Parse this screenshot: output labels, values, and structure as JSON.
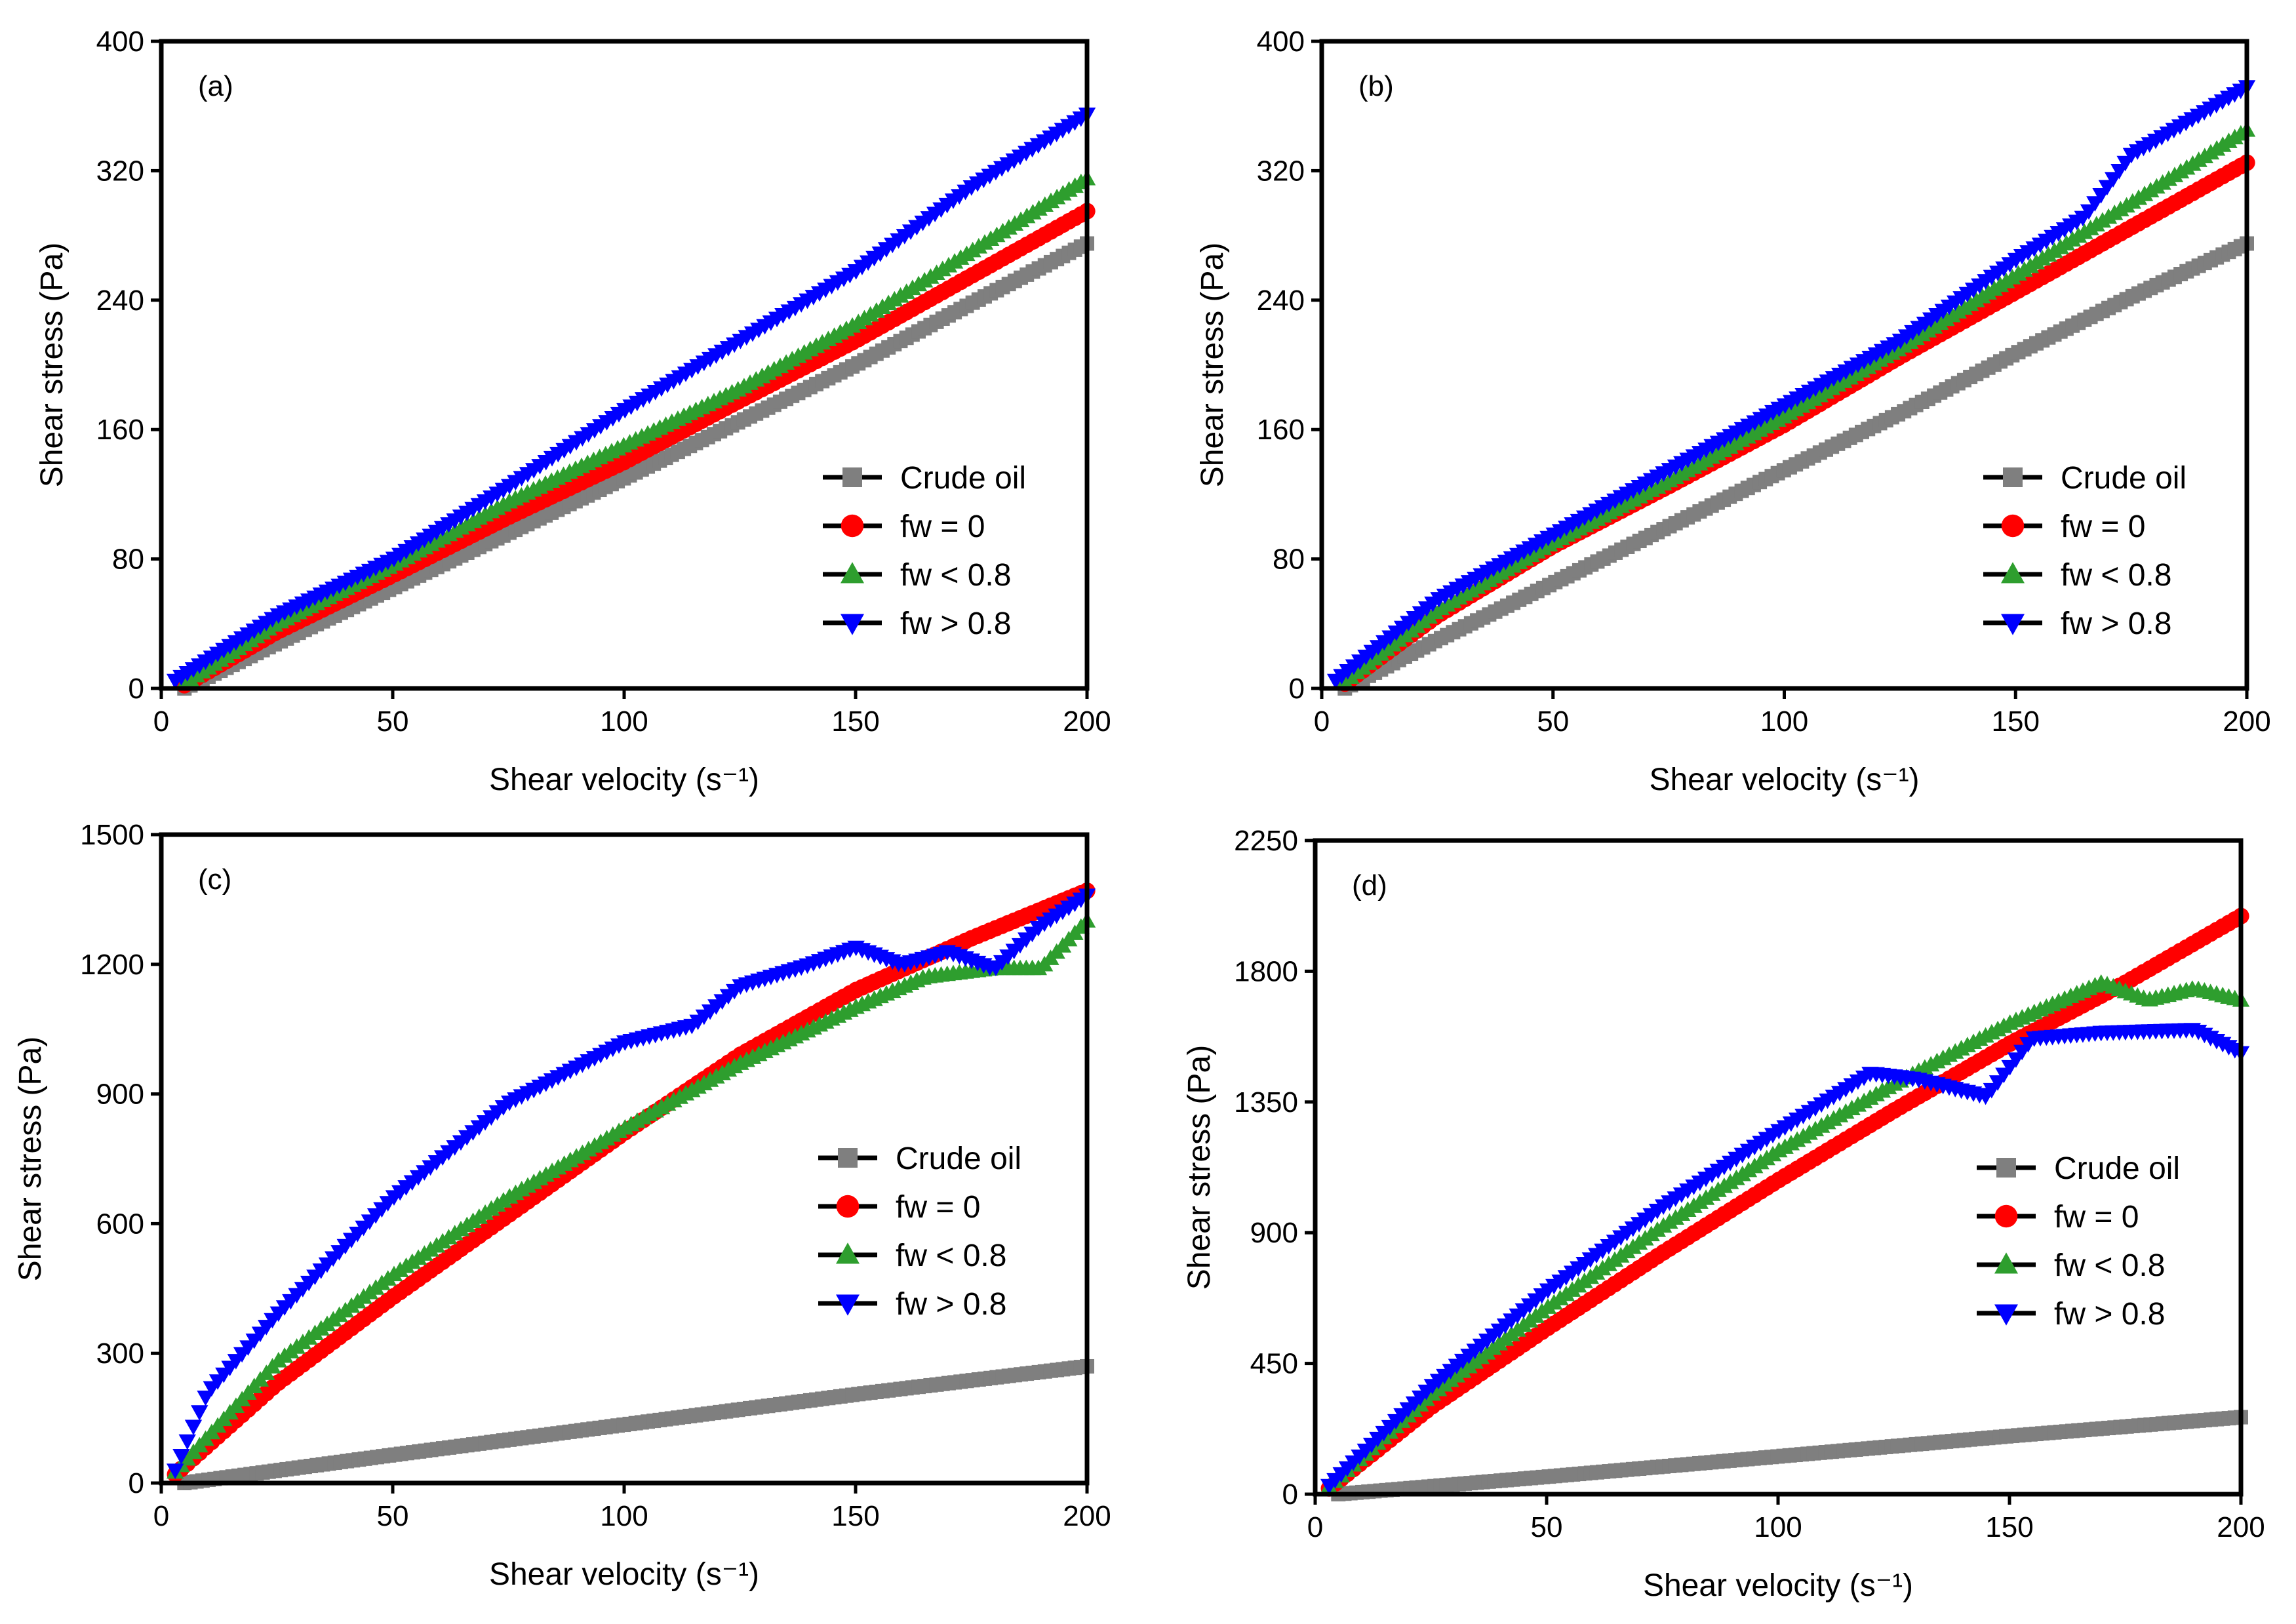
{
  "figure": {
    "colors": {
      "Crude oil": "#7f7f7f",
      "fw = 0": "#ff0000",
      "fw < 0.8": "#2e9e2e",
      "fw > 0.8": "#0000ff"
    },
    "markers": {
      "Crude oil": "square",
      "fw = 0": "circle",
      "fw < 0.8": "triangle-up",
      "fw > 0.8": "triangle-down"
    }
  },
  "chart_data": [
    {
      "type": "scatter",
      "panel_label": "(a)",
      "xlabel": "Shear velocity (s⁻¹)",
      "ylabel": "Shear stress (Pa)",
      "xlim": [
        0,
        200
      ],
      "ylim": [
        0,
        400
      ],
      "xticks": [
        0,
        50,
        100,
        150,
        200
      ],
      "yticks": [
        0,
        80,
        160,
        240,
        320,
        400
      ],
      "legend_position": "lower-right",
      "series": [
        {
          "name": "Crude oil",
          "x": [
            5,
            25,
            50,
            75,
            100,
            125,
            150,
            175,
            200
          ],
          "y": [
            0,
            28,
            62,
            96,
            130,
            165,
            200,
            238,
            275
          ]
        },
        {
          "name": "fw = 0",
          "x": [
            5,
            25,
            50,
            75,
            100,
            125,
            150,
            175,
            200
          ],
          "y": [
            2,
            35,
            70,
            106,
            140,
            178,
            215,
            255,
            295
          ]
        },
        {
          "name": "fw < 0.8",
          "x": [
            5,
            25,
            50,
            75,
            100,
            125,
            150,
            175,
            200
          ],
          "y": [
            3,
            40,
            76,
            115,
            150,
            185,
            225,
            270,
            315
          ]
        },
        {
          "name": "fw > 0.8",
          "x": [
            3,
            25,
            50,
            75,
            100,
            125,
            150,
            175,
            200
          ],
          "y": [
            5,
            45,
            80,
            125,
            172,
            215,
            258,
            310,
            355
          ]
        }
      ]
    },
    {
      "type": "scatter",
      "panel_label": "(b)",
      "xlabel": "Shear velocity (s⁻¹)",
      "ylabel": "Shear stress (Pa)",
      "xlim": [
        0,
        200
      ],
      "ylim": [
        0,
        400
      ],
      "xticks": [
        0,
        50,
        100,
        150,
        200
      ],
      "yticks": [
        0,
        80,
        160,
        240,
        320,
        400
      ],
      "legend_position": "lower-right",
      "series": [
        {
          "name": "Crude oil",
          "x": [
            5,
            25,
            50,
            75,
            100,
            125,
            150,
            175,
            200
          ],
          "y": [
            0,
            30,
            65,
            100,
            135,
            170,
            207,
            242,
            275
          ]
        },
        {
          "name": "fw = 0",
          "x": [
            5,
            25,
            50,
            75,
            100,
            125,
            150,
            175,
            200
          ],
          "y": [
            3,
            45,
            88,
            125,
            163,
            205,
            245,
            285,
            325
          ]
        },
        {
          "name": "fw < 0.8",
          "x": [
            5,
            25,
            50,
            75,
            100,
            125,
            150,
            175,
            200
          ],
          "y": [
            4,
            48,
            90,
            128,
            168,
            210,
            255,
            300,
            345
          ]
        },
        {
          "name": "fw > 0.8",
          "x": [
            3,
            25,
            50,
            75,
            100,
            125,
            150,
            165,
            175,
            200
          ],
          "y": [
            5,
            55,
            95,
            135,
            175,
            215,
            265,
            292,
            330,
            372
          ]
        }
      ]
    },
    {
      "type": "scatter",
      "panel_label": "(c)",
      "xlabel": "Shear velocity (s⁻¹)",
      "ylabel": "Shear stress (Pa)",
      "xlim": [
        0,
        200
      ],
      "ylim": [
        0,
        1500
      ],
      "xticks": [
        0,
        50,
        100,
        150,
        200
      ],
      "yticks": [
        0,
        300,
        600,
        900,
        1200,
        1500
      ],
      "legend_position": "lower-right",
      "series": [
        {
          "name": "Crude oil",
          "x": [
            5,
            50,
            100,
            150,
            200
          ],
          "y": [
            0,
            65,
            135,
            205,
            270
          ]
        },
        {
          "name": "fw = 0",
          "x": [
            3,
            25,
            50,
            75,
            100,
            125,
            150,
            175,
            200
          ],
          "y": [
            20,
            230,
            430,
            620,
            810,
            990,
            1140,
            1260,
            1370
          ]
        },
        {
          "name": "fw < 0.8",
          "x": [
            3,
            25,
            50,
            75,
            100,
            125,
            150,
            165,
            180,
            190,
            200
          ],
          "y": [
            25,
            280,
            480,
            660,
            820,
            970,
            1100,
            1170,
            1190,
            1190,
            1300
          ]
        },
        {
          "name": "fw > 0.8",
          "x": [
            3,
            10,
            25,
            50,
            75,
            100,
            115,
            125,
            140,
            150,
            160,
            170,
            180,
            190,
            200
          ],
          "y": [
            30,
            210,
            390,
            660,
            880,
            1020,
            1060,
            1150,
            1200,
            1240,
            1200,
            1230,
            1190,
            1290,
            1360
          ]
        }
      ]
    },
    {
      "type": "scatter",
      "panel_label": "(d)",
      "xlabel": "Shear velocity (s⁻¹)",
      "ylabel": "Shear stress (Pa)",
      "xlim": [
        0,
        200
      ],
      "ylim": [
        0,
        2250
      ],
      "xticks": [
        0,
        50,
        100,
        150,
        200
      ],
      "yticks": [
        0,
        450,
        900,
        1350,
        1800,
        2250
      ],
      "legend_position": "lower-right",
      "series": [
        {
          "name": "Crude oil",
          "x": [
            5,
            50,
            100,
            150,
            200
          ],
          "y": [
            0,
            60,
            130,
            200,
            265
          ]
        },
        {
          "name": "fw = 0",
          "x": [
            3,
            25,
            50,
            75,
            100,
            125,
            150,
            175,
            200
          ],
          "y": [
            20,
            300,
            570,
            830,
            1080,
            1320,
            1550,
            1760,
            1990
          ]
        },
        {
          "name": "fw < 0.8",
          "x": [
            3,
            25,
            50,
            75,
            100,
            125,
            150,
            170,
            180,
            190,
            200
          ],
          "y": [
            25,
            340,
            640,
            920,
            1180,
            1410,
            1620,
            1760,
            1700,
            1740,
            1700
          ]
        },
        {
          "name": "fw > 0.8",
          "x": [
            3,
            25,
            50,
            75,
            100,
            120,
            130,
            145,
            155,
            170,
            190,
            200
          ],
          "y": [
            30,
            370,
            700,
            990,
            1250,
            1450,
            1430,
            1370,
            1570,
            1590,
            1600,
            1520
          ]
        }
      ]
    }
  ]
}
